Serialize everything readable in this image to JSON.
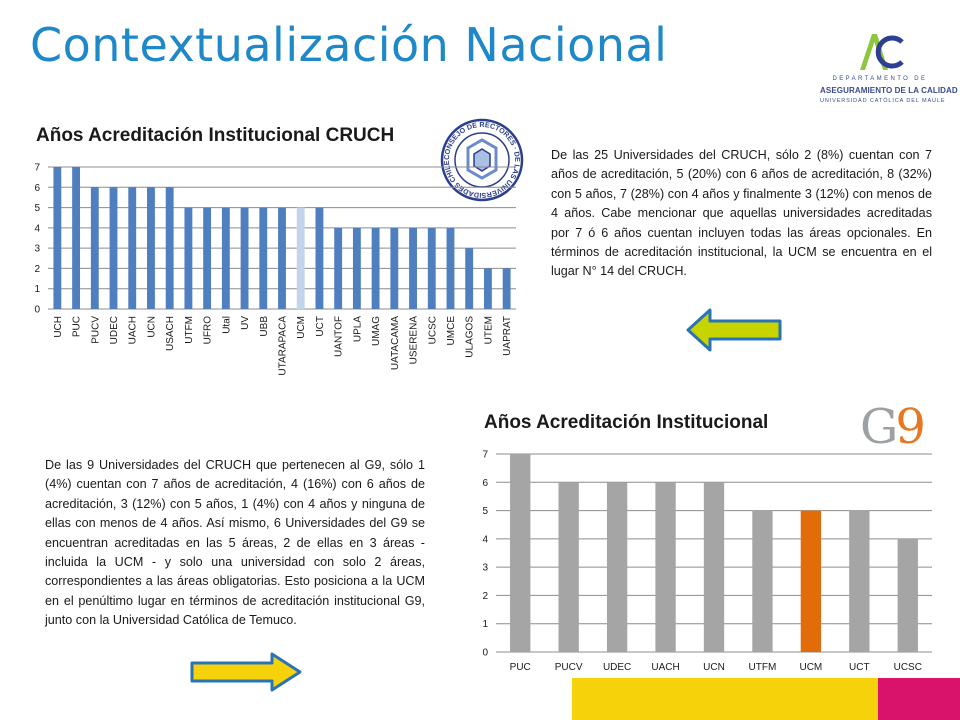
{
  "page": {
    "title": "Contextualización Nacional"
  },
  "logo": {
    "line1": "DEPARTAMENTO DE",
    "line2": "ASEGURAMIENTO DE LA CALIDAD",
    "line3": "UNIVERSIDAD CATÓLICA DEL MAULE",
    "colors": {
      "teal": "#8dc63f",
      "blue": "#2e3f92"
    }
  },
  "seal": {
    "text": "CONSEJO DE RECTORES · DE LAS UNIVERSIDADES CHILENAS"
  },
  "g9_logo": {
    "letter": "G",
    "number": "9"
  },
  "section1": {
    "title": "Años Acreditación Institucional CRUCH",
    "paragraph": "De las 25 Universidades del CRUCH, sólo 2 (8%) cuentan con 7 años de acreditación, 5 (20%) con 6 años de acreditación, 8 (32%) con 5 años, 7 (28%) con 4 años y finalmente 3 (12%) con menos de 4 años. Cabe mencionar que aquellas universidades acreditadas por 7 ó 6 años cuentan incluyen todas las áreas opcionales. En términos de acreditación institucional, la UCM se encuentra en el lugar N° 14 del CRUCH."
  },
  "section2": {
    "title": "Años Acreditación Institucional",
    "paragraph": "De las 9 Universidades del CRUCH que pertenecen al G9, sólo 1 (4%) cuentan con 7 años de acreditación, 4 (16%) con 6 años de acreditación, 3 (12%) con 5 años, 1 (4%) con 4 años y ninguna de ellas con menos de 4 años. Así mismo, 6 Universidades del G9 se encuentran acreditadas en las 5 áreas, 2 de ellas en 3 áreas - incluida la UCM - y solo una universidad con solo 2 áreas, correspondientes a las áreas obligatorias. Esto posiciona a la UCM en el penúltimo lugar en términos de acreditación institucional G9, junto con la Universidad Católica de Temuco."
  },
  "arrows": [
    {
      "direction": "left",
      "fill": "#c8d400",
      "stroke": "#2b73b7"
    },
    {
      "direction": "right",
      "fill": "#c8d400",
      "stroke": "#2b73b7"
    }
  ],
  "chart_data": [
    {
      "type": "bar",
      "title": "Años Acreditación Institucional CRUCH",
      "categories": [
        "UCH",
        "PUC",
        "PUCV",
        "UDEC",
        "UACH",
        "UCN",
        "USACH",
        "UTFM",
        "UFRO",
        "Utal",
        "UV",
        "UBB",
        "UTARAPACA",
        "UCM",
        "UCT",
        "UANTOF",
        "UPLA",
        "UMAG",
        "UATACAMA",
        "USERENA",
        "UCSC",
        "UMCE",
        "ULAGOS",
        "UTEM",
        "UAPRAT"
      ],
      "values": [
        7,
        7,
        6,
        6,
        6,
        6,
        6,
        5,
        5,
        5,
        5,
        5,
        5,
        5,
        5,
        4,
        4,
        4,
        4,
        4,
        4,
        4,
        3,
        2,
        2
      ],
      "highlight": "UCM",
      "ylim": [
        0,
        7
      ],
      "yticks": [
        0,
        1,
        2,
        3,
        4,
        5,
        6,
        7
      ],
      "grid": true,
      "colors": {
        "bar": "#4f7fbf",
        "highlight": "#c3d5ed",
        "grid": "#8c8c8c"
      }
    },
    {
      "type": "bar",
      "title": "Años Acreditación Institucional",
      "categories": [
        "PUC",
        "PUCV",
        "UDEC",
        "UACH",
        "UCN",
        "UTFM",
        "UCM",
        "UCT",
        "UCSC"
      ],
      "values": [
        7,
        6,
        6,
        6,
        6,
        5,
        5,
        5,
        4
      ],
      "highlight": "UCM",
      "ylim": [
        0,
        7
      ],
      "yticks": [
        0,
        1,
        2,
        3,
        4,
        5,
        6,
        7
      ],
      "grid": true,
      "colors": {
        "bar": "#a5a5a5",
        "highlight": "#e36c0a",
        "grid": "#8c8c8c"
      }
    }
  ]
}
